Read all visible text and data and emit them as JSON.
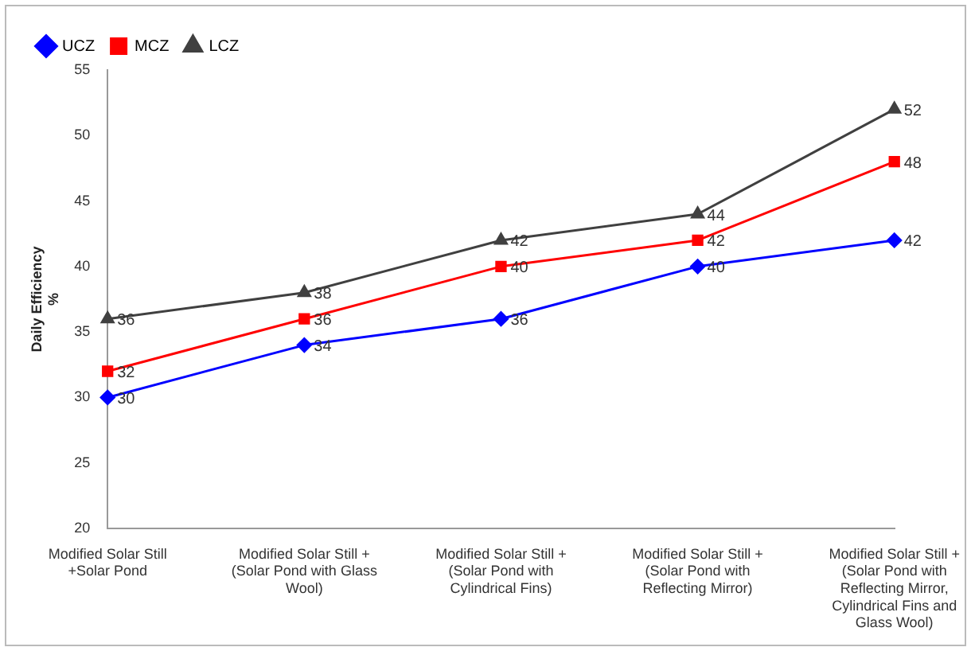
{
  "chart_data": {
    "type": "line",
    "ylabel": "Daily Efficiency\n%",
    "categories": [
      "Modified Solar Still +Solar Pond",
      "Modified Solar Still + (Solar Pond with Glass Wool)",
      "Modified Solar Still + (Solar Pond with Cylindrical Fins)",
      "Modified Solar Still + (Solar Pond with Reflecting Mirror)",
      "Modified Solar Still + (Solar Pond with Reflecting Mirror, Cylindrical Fins and Glass Wool)"
    ],
    "series": [
      {
        "name": "UCZ",
        "color": "#0000ff",
        "marker": "diamond",
        "values": [
          30,
          34,
          36,
          40,
          42
        ]
      },
      {
        "name": "MCZ",
        "color": "#ff0000",
        "marker": "square",
        "values": [
          32,
          36,
          40,
          42,
          48
        ]
      },
      {
        "name": "LCZ",
        "color": "#404040",
        "marker": "triangle",
        "values": [
          36,
          38,
          42,
          44,
          52
        ]
      }
    ],
    "ylim": [
      20,
      55
    ],
    "yticks": [
      20,
      25,
      30,
      35,
      40,
      45,
      50,
      55
    ],
    "grid": false,
    "legend": "top left",
    "data_labels": true
  }
}
